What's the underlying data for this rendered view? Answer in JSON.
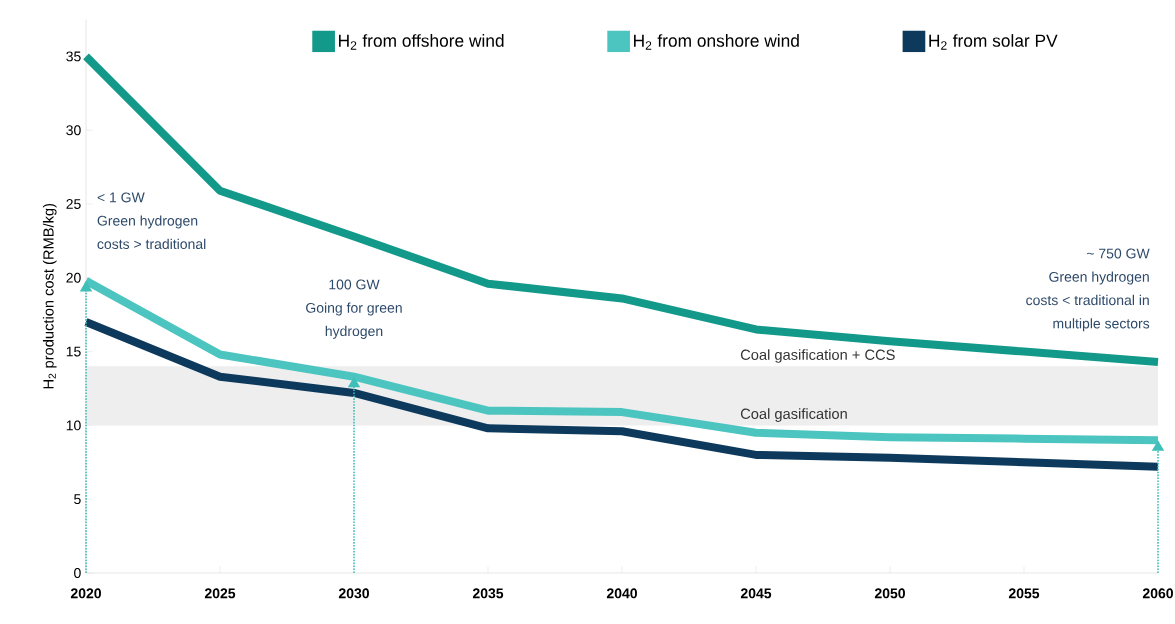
{
  "chart_data": {
    "type": "line",
    "x": [
      2020,
      2025,
      2030,
      2035,
      2040,
      2045,
      2050,
      2055,
      2060
    ],
    "series": [
      {
        "name": "H$_{2}$ from offshore wind",
        "color": "#13998a",
        "values": [
          35,
          25.9,
          22.8,
          19.6,
          18.6,
          16.5,
          15.7,
          15.0,
          14.3
        ]
      },
      {
        "name": "H$_{2}$ from onshore wind",
        "color": "#4cc5c0",
        "values": [
          19.8,
          14.8,
          13.3,
          11.0,
          10.9,
          9.5,
          9.2,
          9.1,
          9.0
        ]
      },
      {
        "name": "H$_{2}$ from solar PV",
        "color": "#0d3a5c",
        "values": [
          17.0,
          13.3,
          12.2,
          9.8,
          9.6,
          8.0,
          7.8,
          7.5,
          7.2
        ]
      }
    ],
    "ylabel": "H$_{2}$ production cost (RMB/kg)",
    "xlim": [
      2020,
      2060
    ],
    "xticks": [
      2020,
      2025,
      2030,
      2035,
      2040,
      2045,
      2050,
      2055,
      2060
    ],
    "ylim": [
      0,
      37.5
    ],
    "yticks": [
      0,
      5,
      10,
      15,
      20,
      25,
      30,
      35
    ],
    "bands": [
      {
        "axis": "y",
        "from": 10,
        "to": 14,
        "color": "#eeeeee"
      }
    ],
    "ref_lines": [
      {
        "axis": "x",
        "value": 2020,
        "color": "#3fbfb8",
        "line_style": "dotted"
      },
      {
        "axis": "x",
        "value": 2030,
        "color": "#3fbfb8",
        "line_style": "dotted"
      },
      {
        "axis": "x",
        "value": 2060,
        "color": "#3fbfb8",
        "line_style": "dotted"
      }
    ],
    "annotations": [
      "< 1 GW",
      "Green hydrogen",
      "costs > traditional",
      "100 GW",
      "Going for green",
      "hydrogen",
      "~ 750 GW",
      "Green hydrogen",
      "costs < traditional in",
      "multiple sectors",
      {
        "text": "Coal gasification + CCS",
        "x": 2044.4,
        "y": 14
      },
      {
        "text": "Coal gasification",
        "x": 2044.4,
        "y": 10
      }
    ],
    "legend": "top",
    "marker": "none",
    "line_style": "solid"
  }
}
